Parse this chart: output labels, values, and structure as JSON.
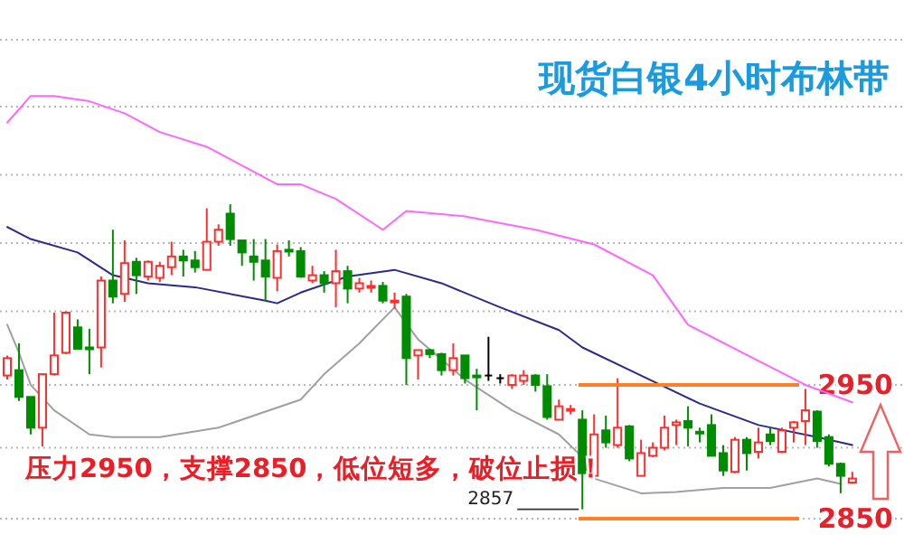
{
  "chart_data": {
    "type": "candlestick",
    "title": "现货白银4小时布林带",
    "categories": [
      null,
      null,
      null,
      null,
      null,
      null,
      null,
      null,
      null,
      null,
      null,
      null,
      null,
      null,
      null,
      null,
      null,
      null,
      null,
      null,
      null,
      null,
      null,
      null,
      null,
      null,
      null,
      null,
      null,
      null,
      null,
      null,
      null,
      null,
      null,
      null,
      null,
      null,
      null,
      null,
      null,
      null,
      null,
      null,
      null,
      null,
      null,
      null,
      null,
      null,
      null,
      null,
      null,
      null,
      null,
      null,
      null,
      null,
      null,
      null,
      null,
      null,
      null,
      null,
      null,
      null,
      null,
      null,
      null,
      null,
      null,
      null,
      null
    ],
    "ohlc": [
      [
        2957,
        2972,
        2954,
        2970
      ],
      [
        2961,
        2981,
        2938,
        2941
      ],
      [
        2941,
        2941,
        2913,
        2918
      ],
      [
        2918,
        2958,
        2904,
        2958
      ],
      [
        2958,
        3004,
        2957,
        2972
      ],
      [
        2974,
        3005,
        2973,
        3004
      ],
      [
        2993,
        2999,
        2977,
        2977
      ],
      [
        2978,
        2992,
        2958,
        2977
      ],
      [
        2978,
        3031,
        2963,
        3028
      ],
      [
        3028,
        3066,
        3011,
        3016
      ],
      [
        3018,
        3058,
        3012,
        3041
      ],
      [
        3042,
        3045,
        3018,
        3032
      ],
      [
        3031,
        3043,
        3028,
        3042
      ],
      [
        3030,
        3042,
        3027,
        3039
      ],
      [
        3038,
        3057,
        3032,
        3046
      ],
      [
        3046,
        3051,
        3031,
        3043
      ],
      [
        3043,
        3050,
        3034,
        3038
      ],
      [
        3036,
        3082,
        3036,
        3057
      ],
      [
        3057,
        3070,
        3054,
        3066
      ],
      [
        3078,
        3085,
        3054,
        3059
      ],
      [
        3058,
        3058,
        3039,
        3049
      ],
      [
        3046,
        3059,
        3028,
        3042
      ],
      [
        3043,
        3059,
        3013,
        3031
      ],
      [
        3030,
        3055,
        3020,
        3050
      ],
      [
        3051,
        3058,
        3046,
        3050
      ],
      [
        3050,
        3053,
        3030,
        3031
      ],
      [
        3028,
        3039,
        3026,
        3032
      ],
      [
        3032,
        3035,
        3019,
        3026
      ],
      [
        3026,
        3051,
        3008,
        3035
      ],
      [
        3035,
        3039,
        3011,
        3022
      ],
      [
        3022,
        3030,
        3019,
        3026
      ],
      [
        3023,
        3028,
        3019,
        3024
      ],
      [
        3024,
        3027,
        3011,
        3013
      ],
      [
        3012,
        3019,
        3007,
        3013
      ],
      [
        3016,
        3018,
        2950,
        2970
      ],
      [
        2972,
        2976,
        2954,
        2976
      ],
      [
        2976,
        2977,
        2970,
        2973
      ],
      [
        2973,
        2974,
        2957,
        2961
      ],
      [
        2961,
        2981,
        2957,
        2970
      ],
      [
        2972,
        2972,
        2951,
        2955
      ],
      [
        2957,
        2962,
        2931,
        2956
      ],
      [
        2957,
        2986,
        2953,
        2957
      ],
      [
        2955,
        2958,
        2951,
        2955
      ],
      [
        2950,
        2958,
        2947,
        2957
      ],
      [
        2953,
        2961,
        2950,
        2957
      ],
      [
        2957,
        2958,
        2945,
        2950
      ],
      [
        2949,
        2958,
        2924,
        2926
      ],
      [
        2924,
        2939,
        2924,
        2934
      ],
      [
        2931,
        2935,
        2928,
        2932
      ],
      [
        2924,
        2931,
        2857,
        2884
      ],
      [
        2882,
        2928,
        2880,
        2913
      ],
      [
        2916,
        2927,
        2903,
        2907
      ],
      [
        2905,
        2955,
        2903,
        2918
      ],
      [
        2919,
        2920,
        2893,
        2895
      ],
      [
        2882,
        2909,
        2882,
        2899
      ],
      [
        2897,
        2907,
        2896,
        2903
      ],
      [
        2903,
        2927,
        2901,
        2918
      ],
      [
        2920,
        2924,
        2905,
        2922
      ],
      [
        2923,
        2934,
        2904,
        2918
      ],
      [
        2915,
        2918,
        2907,
        2914
      ],
      [
        2920,
        2928,
        2897,
        2897
      ],
      [
        2899,
        2905,
        2882,
        2886
      ],
      [
        2885,
        2911,
        2884,
        2909
      ],
      [
        2909,
        2911,
        2886,
        2899
      ],
      [
        2900,
        2918,
        2895,
        2907
      ],
      [
        2913,
        2918,
        2905,
        2908
      ],
      [
        2900,
        2918,
        2899,
        2916
      ],
      [
        2918,
        2923,
        2907,
        2922
      ],
      [
        2923,
        2947,
        2905,
        2931
      ],
      [
        2930,
        2931,
        2903,
        2908
      ],
      [
        2911,
        2913,
        2889,
        2891
      ],
      [
        2891,
        2892,
        2869,
        2882
      ],
      [
        2877,
        2885,
        2876,
        2880
      ]
    ],
    "colors": [
      "#ff2d2d",
      "#008c00",
      "#008c00",
      "#ff2d2d",
      "#ff2d2d",
      "#ff2d2d",
      "#008c00",
      "#008c00",
      "#ff2d2d",
      "#008c00",
      "#ff2d2d",
      "#008c00",
      "#ff2d2d",
      "#ff2d2d",
      "#ff2d2d",
      "#008c00",
      "#008c00",
      "#ff2d2d",
      "#ff2d2d",
      "#008c00",
      "#008c00",
      "#008c00",
      "#008c00",
      "#ff2d2d",
      "#008c00",
      "#008c00",
      "#ff2d2d",
      "#008c00",
      "#ff2d2d",
      "#008c00",
      "#ff2d2d",
      "#ff2d2d",
      "#008c00",
      "#ff2d2d",
      "#008c00",
      "#ff2d2d",
      "#008c00",
      "#008c00",
      "#ff2d2d",
      "#008c00",
      "#008c00",
      "#000000",
      "#000000",
      "#ff2d2d",
      "#ff2d2d",
      "#008c00",
      "#008c00",
      "#ff2d2d",
      "#ff2d2d",
      "#008c00",
      "#ff2d2d",
      "#008c00",
      "#ff2d2d",
      "#008c00",
      "#ff2d2d",
      "#ff2d2d",
      "#ff2d2d",
      "#ff2d2d",
      "#008c00",
      "#008c00",
      "#008c00",
      "#008c00",
      "#ff2d2d",
      "#008c00",
      "#ff2d2d",
      "#008c00",
      "#ff2d2d",
      "#ff2d2d",
      "#ff2d2d",
      "#008c00",
      "#008c00",
      "#008c00",
      "#ff2d2d"
    ],
    "series": [
      {
        "type": "line",
        "color": "#ff66ff",
        "values": [
          3146,
          null,
          3166,
          null,
          3166,
          null,
          null,
          3162,
          null,
          null,
          3153,
          null,
          null,
          3139,
          null,
          null,
          null,
          3128,
          null,
          null,
          null,
          null,
          null,
          3100,
          null,
          3100,
          null,
          null,
          3089,
          null,
          null,
          null,
          3066,
          null,
          3080,
          null,
          null,
          null,
          null,
          3076,
          null,
          null,
          null,
          null,
          null,
          3066,
          null,
          null,
          null,
          null,
          3055,
          null,
          null,
          null,
          null,
          3032,
          null,
          null,
          2995,
          null,
          null,
          null,
          null,
          null,
          2968,
          null,
          null,
          null,
          2950,
          null,
          null,
          null,
          2937
        ]
      },
      {
        "type": "line",
        "color": "#2a2a8c",
        "values": [
          3068,
          null,
          3059,
          null,
          null,
          null,
          3049,
          null,
          null,
          3032,
          null,
          null,
          3026,
          null,
          null,
          null,
          3023,
          null,
          null,
          null,
          null,
          null,
          3013,
          3011,
          null,
          3019,
          null,
          null,
          null,
          3031,
          null,
          null,
          null,
          3036,
          null,
          null,
          null,
          3026,
          null,
          null,
          null,
          null,
          3008,
          null,
          null,
          null,
          null,
          2991,
          null,
          2978,
          null,
          null,
          null,
          null,
          2957,
          null,
          null,
          null,
          null,
          2936,
          null,
          null,
          null,
          null,
          2920,
          null,
          null,
          null,
          null,
          2911,
          null,
          null,
          2905
        ]
      },
      {
        "type": "line",
        "color": "#a0a0a0",
        "values": [
          2995,
          2974,
          2950,
          null,
          2931,
          null,
          null,
          2913,
          null,
          2911,
          null,
          null,
          null,
          2911,
          null,
          null,
          null,
          null,
          2918,
          null,
          null,
          null,
          2930,
          null,
          null,
          2939,
          null,
          2958,
          null,
          null,
          2981,
          null,
          null,
          3008,
          null,
          2984,
          null,
          null,
          null,
          2954,
          null,
          null,
          null,
          2931,
          null,
          null,
          null,
          2913,
          null,
          2896,
          2880,
          null,
          null,
          null,
          2869,
          null,
          null,
          2870,
          null,
          null,
          null,
          2873,
          null,
          null,
          null,
          2873,
          null,
          null,
          null,
          2880,
          null,
          2876,
          null
        ]
      }
    ],
    "ylim": [
      2850,
      3208
    ],
    "yticks": [
      {
        "value": 2850,
        "label": "2850"
      },
      {
        "value": 2903,
        "label": null
      },
      {
        "value": 2950,
        "label": "2950"
      },
      {
        "value": 3005,
        "label": null
      },
      {
        "value": 3056,
        "label": null
      },
      {
        "value": 3107,
        "label": null
      },
      {
        "value": 3158,
        "label": null
      },
      {
        "value": 3208,
        "label": null
      }
    ],
    "grid": "y",
    "ref_lines": [
      {
        "axis": "y",
        "value": 2950,
        "color": "#ff7f27"
      },
      {
        "axis": "y",
        "value": 2850,
        "color": "#ff7f27"
      }
    ],
    "annotations": [
      "压力2950，支撑2850，低位短多，破位止损！",
      "2857"
    ]
  }
}
